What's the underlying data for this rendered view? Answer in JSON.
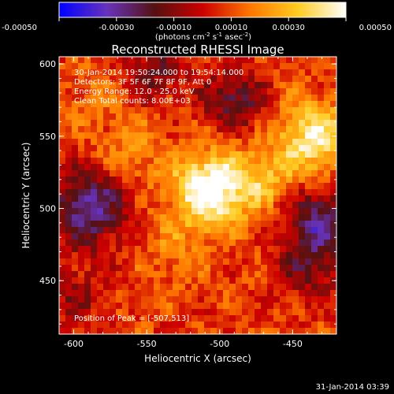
{
  "colorbar": {
    "tick_labels": [
      "-0.00050",
      "-0.00030",
      "-0.00010",
      "0.00010",
      "0.00030",
      "0.00050"
    ],
    "tick_values": [
      -0.0005,
      -0.0003,
      -0.0001,
      0.0001,
      0.0003,
      0.0005
    ],
    "range": [
      -0.0005,
      0.0005
    ],
    "units_prefix": "(photons cm",
    "units_sup1": "-2",
    "units_mid1": " s",
    "units_sup2": "-1",
    "units_mid2": " asec",
    "units_sup3": "-2",
    "units_suffix": ")",
    "colors": [
      "#0000ff",
      "#6633bb",
      "#551111",
      "#cc0000",
      "#ff7700",
      "#ffcc22",
      "#ffffff"
    ]
  },
  "chart_data": {
    "type": "heatmap",
    "title": "Reconstructed RHESSI Image",
    "xlabel": "Heliocentric X (arcsec)",
    "ylabel": "Heliocentric Y (arcsec)",
    "xlim": [
      -610,
      -420
    ],
    "ylim": [
      413,
      605
    ],
    "x_ticks": [
      -600,
      -550,
      -500,
      -450
    ],
    "x_tick_labels": [
      "-600",
      "-550",
      "-500",
      "-450"
    ],
    "y_ticks": [
      450,
      500,
      550,
      600
    ],
    "y_tick_labels": [
      "450",
      "500",
      "550",
      "600"
    ],
    "annotations": [
      "30-Jan-2014 19:50:24.000 to 19:54:14.000",
      "Detectors: 3F 5F 6F 7F 8F 9F, Att 0",
      "Energy Range: 12.0 - 25.0 keV",
      "Clean     Total counts: 8.00E+03"
    ],
    "peak_label": "Position of Peak = [-507,513]",
    "peak": [
      -507,
      513
    ],
    "sources": [
      {
        "x": -507,
        "y": 513,
        "amp": 0.00048
      },
      {
        "x": -435,
        "y": 548,
        "amp": 0.00036
      },
      {
        "x": -470,
        "y": 520,
        "amp": 0.0002
      },
      {
        "x": -560,
        "y": 540,
        "amp": 0.00012
      },
      {
        "x": -530,
        "y": 470,
        "amp": 0.0001
      },
      {
        "x": -585,
        "y": 575,
        "amp": 8e-05
      },
      {
        "x": -590,
        "y": 500,
        "amp": -0.0004
      },
      {
        "x": -430,
        "y": 490,
        "amp": -0.00035
      },
      {
        "x": -490,
        "y": 575,
        "amp": -0.00028
      },
      {
        "x": -545,
        "y": 595,
        "amp": -0.0002
      },
      {
        "x": -600,
        "y": 440,
        "amp": -0.00015
      },
      {
        "x": -440,
        "y": 455,
        "amp": -0.00018
      }
    ]
  },
  "footer": {
    "timestamp": "31-Jan-2014 03:39"
  }
}
